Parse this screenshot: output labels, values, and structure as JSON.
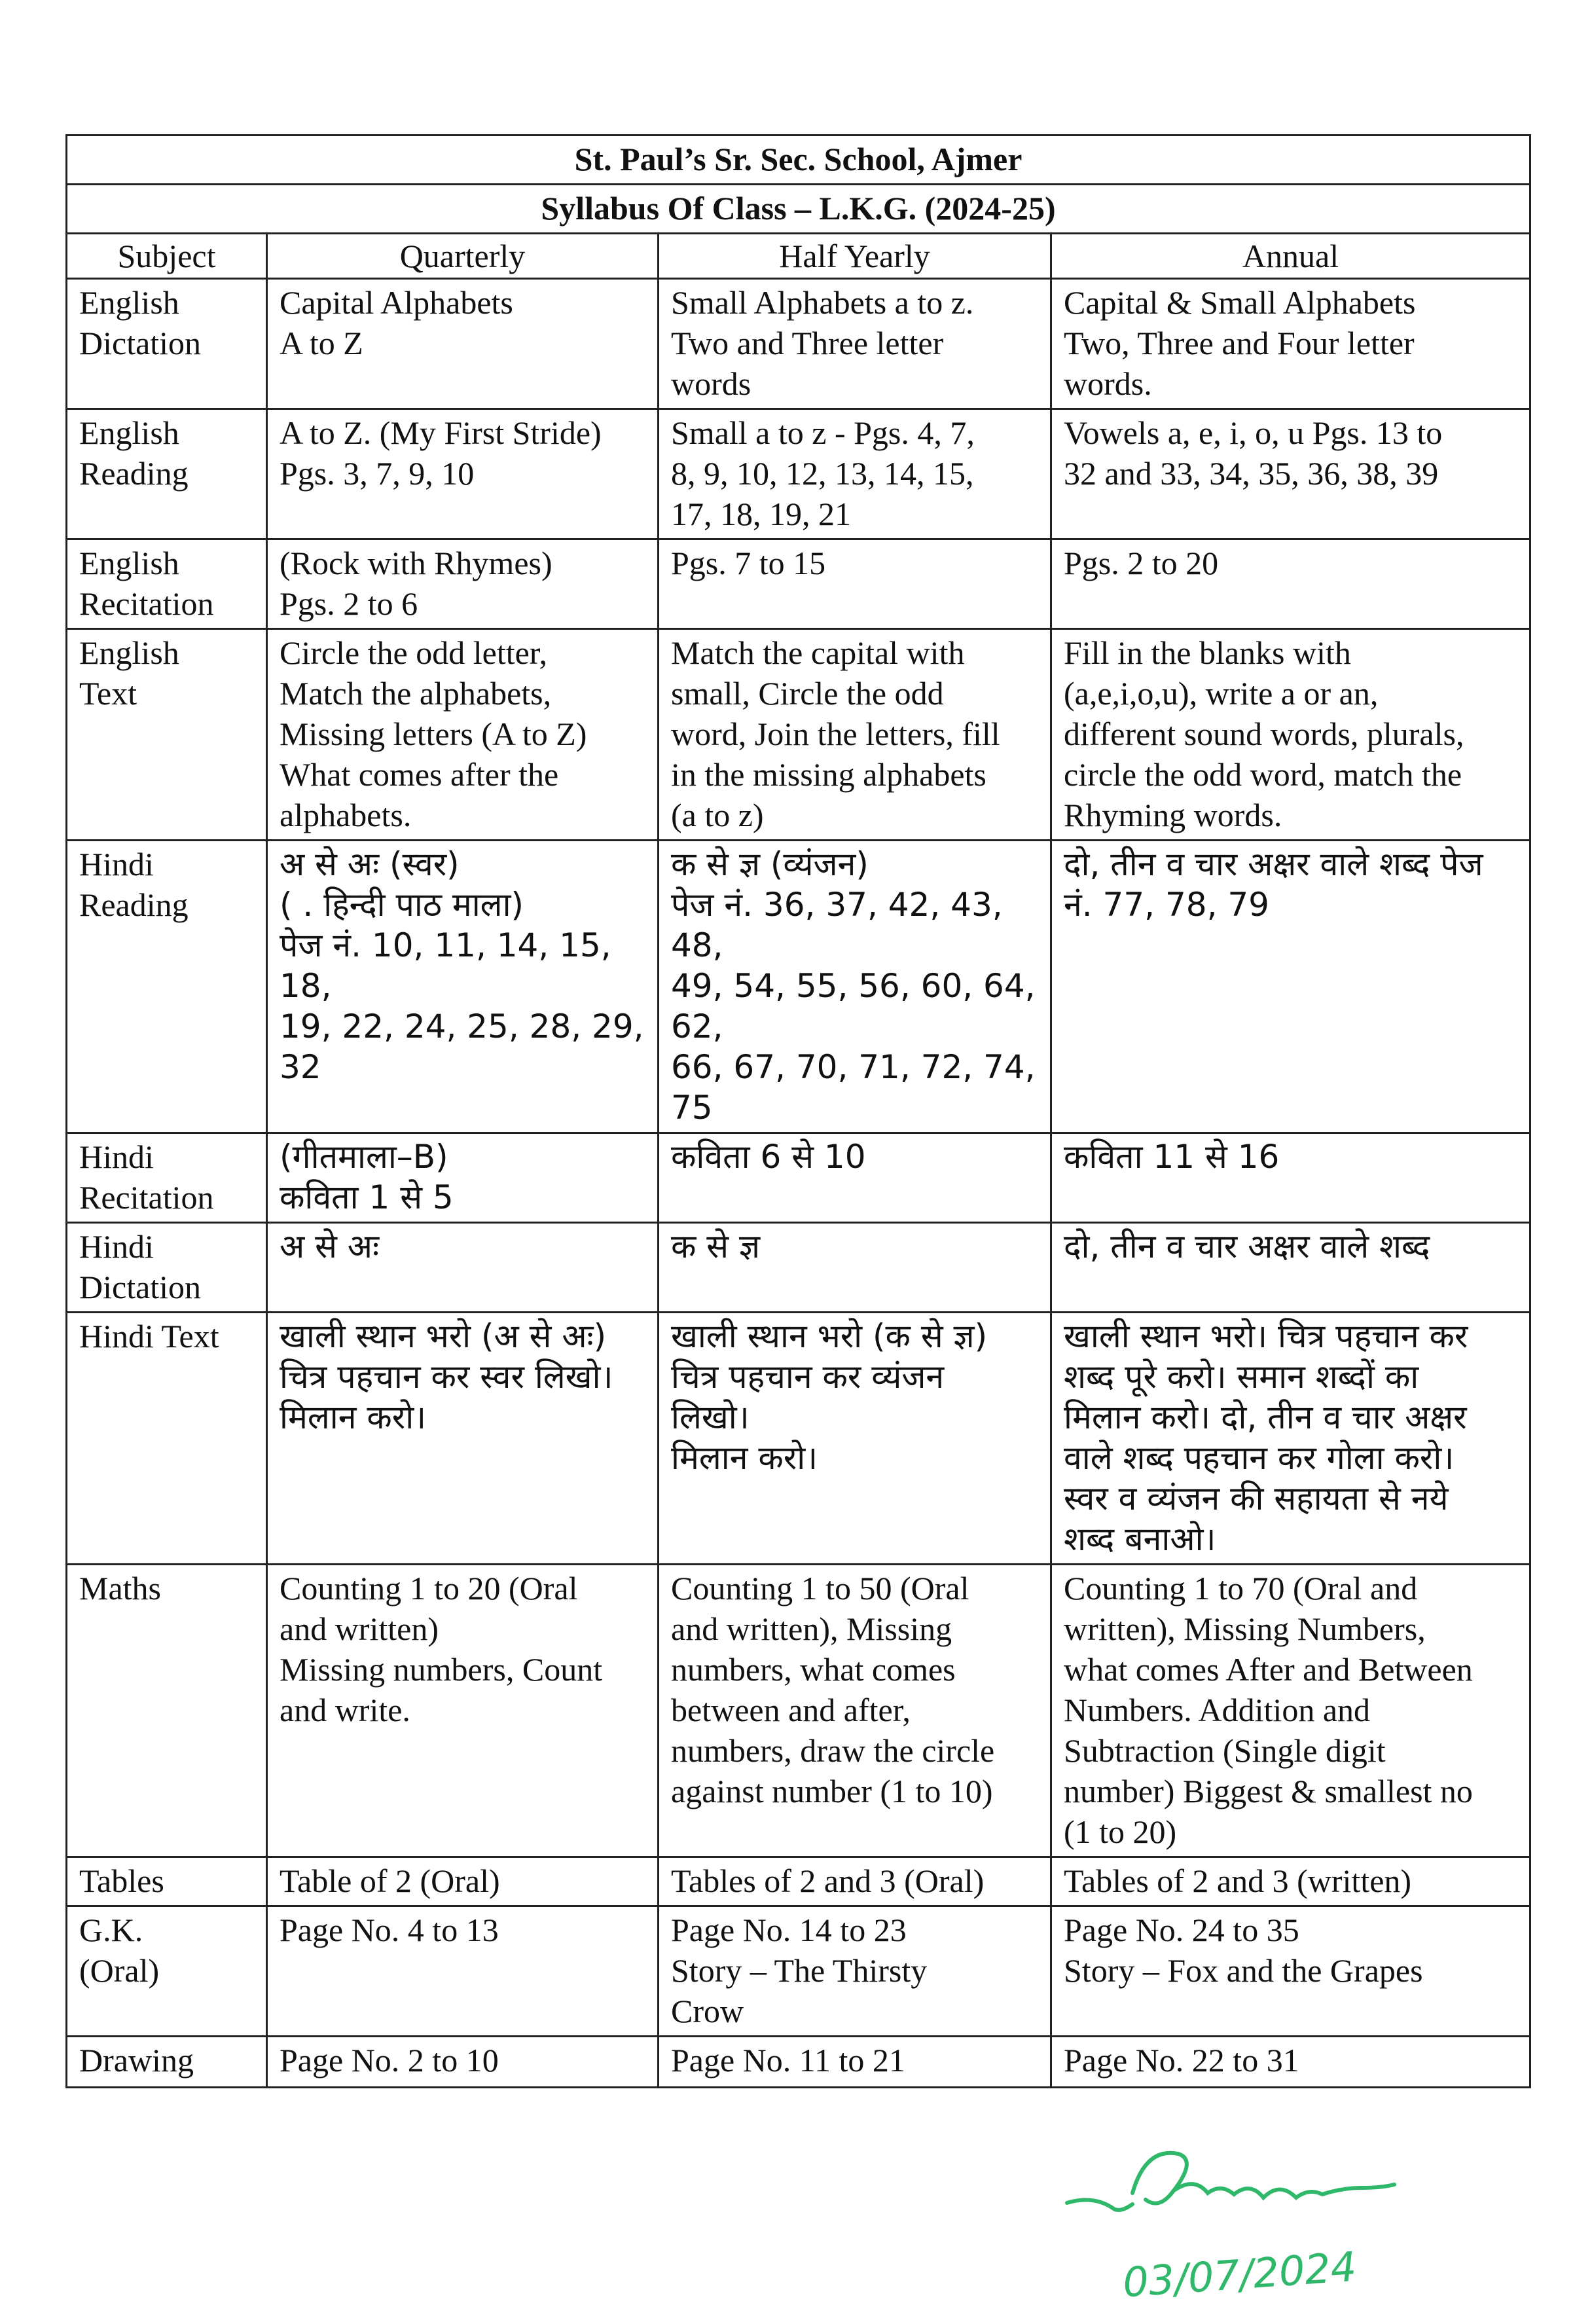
{
  "title": "St. Paul’s Sr. Sec. School, Ajmer",
  "subtitle": "Syllabus Of Class – L.K.G. (2024-25)",
  "headers": [
    "Subject",
    "Quarterly",
    "Half Yearly",
    "Annual"
  ],
  "rows": [
    {
      "subject": [
        "English",
        "Dictation"
      ],
      "hindi": false,
      "quarterly": [
        "Capital Alphabets",
        "A to Z"
      ],
      "half": [
        "Small Alphabets a to z.",
        "Two and Three letter",
        "words"
      ],
      "annual": [
        "Capital & Small Alphabets",
        "Two, Three and Four letter",
        "words."
      ]
    },
    {
      "subject": [
        "English",
        "Reading"
      ],
      "hindi": false,
      "quarterly": [
        "A to Z. (My First Stride)",
        "Pgs. 3, 7, 9, 10"
      ],
      "half": [
        "Small a to z - Pgs. 4, 7,",
        "8, 9, 10, 12, 13, 14, 15,",
        "17, 18, 19, 21"
      ],
      "annual": [
        "Vowels a, e, i, o, u Pgs. 13 to",
        "32 and 33, 34, 35, 36, 38, 39"
      ]
    },
    {
      "subject": [
        "English",
        "Recitation"
      ],
      "hindi": false,
      "quarterly": [
        "(Rock with Rhymes)",
        "Pgs. 2 to 6"
      ],
      "half": [
        "Pgs. 7 to 15"
      ],
      "annual": [
        "Pgs. 2 to 20"
      ]
    },
    {
      "subject": [
        "English",
        "Text"
      ],
      "hindi": false,
      "quarterly": [
        "Circle the odd letter,",
        "Match the alphabets,",
        "Missing letters (A to Z)",
        "What comes after the",
        "alphabets."
      ],
      "half": [
        "Match the capital with",
        "small, Circle the odd",
        "word, Join the letters, fill",
        "in the missing alphabets",
        "(a to z)"
      ],
      "annual": [
        "Fill in the blanks with",
        "(a,e,i,o,u), write a or an,",
        "different sound words, plurals,",
        "circle the odd word, match the",
        "Rhyming words."
      ]
    },
    {
      "subject": [
        "Hindi",
        "Reading"
      ],
      "hindi": true,
      "quarterly": [
        "अ से अः (स्वर)",
        "( . हिन्दी पाठ माला)",
        "पेज नं. 10, 11, 14, 15, 18,",
        "19, 22, 24, 25, 28, 29, 32"
      ],
      "half": [
        "क से ज्ञ (व्यंजन)",
        "पेज नं. 36, 37, 42, 43, 48,",
        "49, 54, 55, 56, 60, 64, 62,",
        "66, 67, 70, 71, 72, 74, 75"
      ],
      "annual": [
        "दो, तीन व चार अक्षर वाले शब्द पेज",
        "नं. 77, 78, 79"
      ]
    },
    {
      "subject": [
        "Hindi",
        "Recitation"
      ],
      "hindi": true,
      "quarterly": [
        "(गीतमाला–B)",
        "कविता 1 से 5"
      ],
      "half": [
        "कविता 6 से 10"
      ],
      "annual": [
        "कविता 11 से 16"
      ]
    },
    {
      "subject": [
        "Hindi",
        "Dictation"
      ],
      "hindi": true,
      "quarterly": [
        "अ से अः"
      ],
      "half": [
        "क से ज्ञ"
      ],
      "annual": [
        "दो, तीन व चार अक्षर वाले शब्द"
      ]
    },
    {
      "subject": [
        "Hindi Text"
      ],
      "hindi": true,
      "quarterly": [
        "खाली स्थान भरो (अ से अः)",
        "चित्र पहचान कर स्वर लिखो।",
        "मिलान करो।"
      ],
      "half": [
        "खाली स्थान भरो (क से ज्ञ)",
        "चित्र पहचान कर व्यंजन",
        "लिखो।",
        "मिलान करो।"
      ],
      "annual": [
        "खाली स्थान भरो। चित्र पहचान कर",
        "शब्द पूरे करो। समान शब्दों का",
        "मिलान करो। दो, तीन व चार अक्षर",
        "वाले शब्द पहचान कर गोला करो।",
        "स्वर व व्यंजन की सहायता से नये",
        "शब्द बनाओ।"
      ]
    },
    {
      "subject": [
        "Maths"
      ],
      "hindi": false,
      "quarterly": [
        "Counting 1 to 20 (Oral",
        "and written)",
        "Missing numbers, Count",
        "and write."
      ],
      "half": [
        "Counting 1 to 50 (Oral",
        "and written), Missing",
        "numbers, what comes",
        "between and after,",
        "numbers, draw the circle",
        "against number (1 to 10)"
      ],
      "annual": [
        "Counting 1 to 70 (Oral and",
        "written), Missing Numbers,",
        "what comes After and Between",
        "Numbers. Addition and",
        "Subtraction (Single digit",
        "number) Biggest & smallest no",
        "(1 to 20)"
      ]
    },
    {
      "subject": [
        "Tables"
      ],
      "hindi": false,
      "quarterly": [
        "Table of 2 (Oral)"
      ],
      "half": [
        "Tables of 2 and 3 (Oral)"
      ],
      "annual": [
        "Tables of 2 and 3 (written)"
      ]
    },
    {
      "subject": [
        "G.K.",
        "(Oral)"
      ],
      "hindi": false,
      "quarterly": [
        "Page No. 4 to 13"
      ],
      "half": [
        "Page No. 14 to 23",
        "Story – The Thirsty",
        "Crow"
      ],
      "annual": [
        "Page No. 24 to 35",
        "Story – Fox and the Grapes"
      ]
    },
    {
      "subject": [
        "Drawing"
      ],
      "hindi": false,
      "quarterly": [
        "Page No. 2 to 10"
      ],
      "half": [
        "Page No. 11 to 21"
      ],
      "annual": [
        "Page No. 22 to 31"
      ]
    }
  ],
  "signature": {
    "date": "03/07/2024",
    "ink_color": "#2fb86a"
  }
}
